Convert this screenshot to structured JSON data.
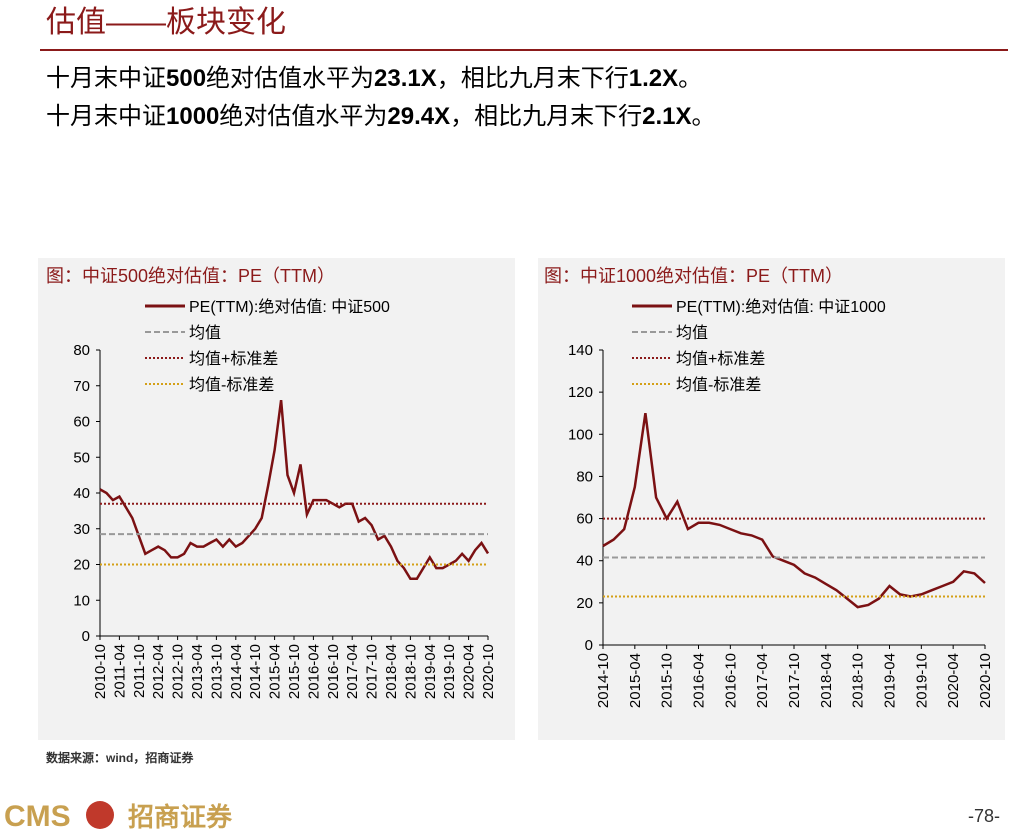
{
  "header": {
    "title": "估值——板块变化",
    "lines": [
      [
        "十月末中证",
        "500",
        "绝对估值水平为",
        "23.1X",
        "，相比九月末下行",
        "1.2X",
        "。"
      ],
      [
        "十月末中证",
        "1000",
        "绝对估值水平为",
        "29.4X",
        "，相比九月末下行",
        "2.1X",
        "。"
      ]
    ]
  },
  "chart_data": [
    {
      "type": "line",
      "title": "图：中证500绝对估值：PE（TTM）",
      "x": [
        "2010-10",
        null,
        null,
        "2011-04",
        null,
        null,
        "2011-10",
        null,
        null,
        "2012-04",
        null,
        null,
        "2012-10",
        null,
        null,
        "2013-04",
        null,
        null,
        "2013-10",
        null,
        null,
        "2014-04",
        null,
        null,
        "2014-10",
        null,
        null,
        "2015-04",
        null,
        null,
        "2015-10",
        null,
        null,
        "2016-04",
        null,
        null,
        "2016-10",
        null,
        null,
        "2017-04",
        null,
        null,
        "2017-10",
        null,
        null,
        "2018-04",
        null,
        null,
        "2018-10",
        null,
        null,
        "2019-04",
        null,
        null,
        "2019-10",
        null,
        null,
        "2020-04",
        null,
        null,
        "2020-10"
      ],
      "series": [
        {
          "name": "PE(TTM):绝对估值: 中证500",
          "color": "#7b1113",
          "values": [
            41,
            40,
            38,
            39,
            36,
            33,
            28,
            23,
            24,
            25,
            24,
            22,
            22,
            23,
            26,
            25,
            25,
            26,
            27,
            25,
            27,
            25,
            26,
            28,
            30,
            33,
            42,
            52,
            66,
            45,
            40,
            48,
            34,
            38,
            38,
            38,
            37,
            36,
            37,
            37,
            32,
            33,
            31,
            27,
            28,
            25,
            21,
            19,
            16,
            16,
            19,
            22,
            19,
            19,
            20,
            21,
            23,
            21,
            24,
            26,
            23.1
          ]
        }
      ],
      "hlines": [
        {
          "name": "均值",
          "value": 28.5,
          "color": "#999999",
          "dash": "6 3"
        },
        {
          "name": "均值+标准差",
          "value": 37,
          "color": "#8b1a1a",
          "dash": "2 2"
        },
        {
          "name": "均值-标准差",
          "value": 20,
          "color": "#d4a017",
          "dash": "2 2"
        }
      ],
      "ylim": [
        0,
        80
      ],
      "yticks": [
        0,
        10,
        20,
        30,
        40,
        50,
        60,
        70,
        80
      ]
    },
    {
      "type": "line",
      "title": "图：中证1000绝对估值：PE（TTM）",
      "x": [
        "2014-10",
        null,
        null,
        "2015-04",
        null,
        null,
        "2015-10",
        null,
        null,
        "2016-04",
        null,
        null,
        "2016-10",
        null,
        null,
        "2017-04",
        null,
        null,
        "2017-10",
        null,
        null,
        "2018-04",
        null,
        null,
        "2018-10",
        null,
        null,
        "2019-04",
        null,
        null,
        "2019-10",
        null,
        null,
        "2020-04",
        null,
        null,
        "2020-10"
      ],
      "series": [
        {
          "name": "PE(TTM):绝对估值: 中证1000",
          "color": "#7b1113",
          "values": [
            47,
            50,
            55,
            75,
            110,
            70,
            60,
            68,
            55,
            58,
            58,
            57,
            55,
            53,
            52,
            50,
            42,
            40,
            38,
            34,
            32,
            29,
            26,
            22,
            18,
            19,
            22,
            28,
            24,
            23,
            24,
            26,
            28,
            30,
            35,
            34,
            29.4
          ]
        }
      ],
      "hlines": [
        {
          "name": "均值",
          "value": 41.5,
          "color": "#999999",
          "dash": "6 3"
        },
        {
          "name": "均值+标准差",
          "value": 60,
          "color": "#8b1a1a",
          "dash": "2 2"
        },
        {
          "name": "均值-标准差",
          "value": 23,
          "color": "#d4a017",
          "dash": "2 2"
        }
      ],
      "ylim": [
        0,
        140
      ],
      "yticks": [
        0,
        20,
        40,
        60,
        80,
        100,
        120,
        140
      ]
    }
  ],
  "footer": {
    "source": "数据来源：wind，招商证券",
    "logo_en": "CMS",
    "logo_cn": "招商证券",
    "page": "-78-"
  }
}
